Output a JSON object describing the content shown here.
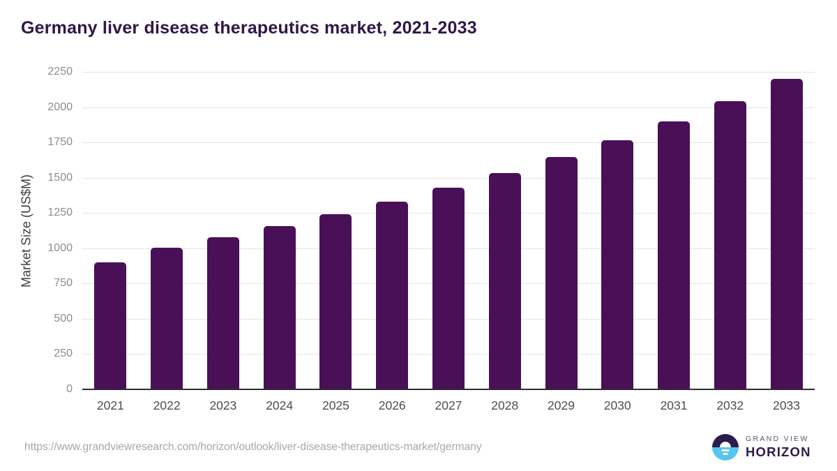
{
  "chart_data": {
    "type": "bar",
    "title": "Germany liver disease therapeutics market, 2021-2033",
    "categories": [
      "2021",
      "2022",
      "2023",
      "2024",
      "2025",
      "2026",
      "2027",
      "2028",
      "2029",
      "2030",
      "2031",
      "2032",
      "2033"
    ],
    "values": [
      900,
      1005,
      1078,
      1156,
      1240,
      1330,
      1428,
      1532,
      1645,
      1765,
      1898,
      2042,
      2200
    ],
    "xlabel": "",
    "ylabel": "Market Size (US$M)",
    "ylim": [
      0,
      2250
    ],
    "ytick_step": 250,
    "grid": true,
    "legend": false,
    "bar_color": "#491057"
  },
  "footer": {
    "url": "https://www.grandviewresearch.com/horizon/outlook/liver-disease-therapeutics-market/germany",
    "logo_top": "GRAND VIEW",
    "logo_bottom": "HORIZON"
  }
}
